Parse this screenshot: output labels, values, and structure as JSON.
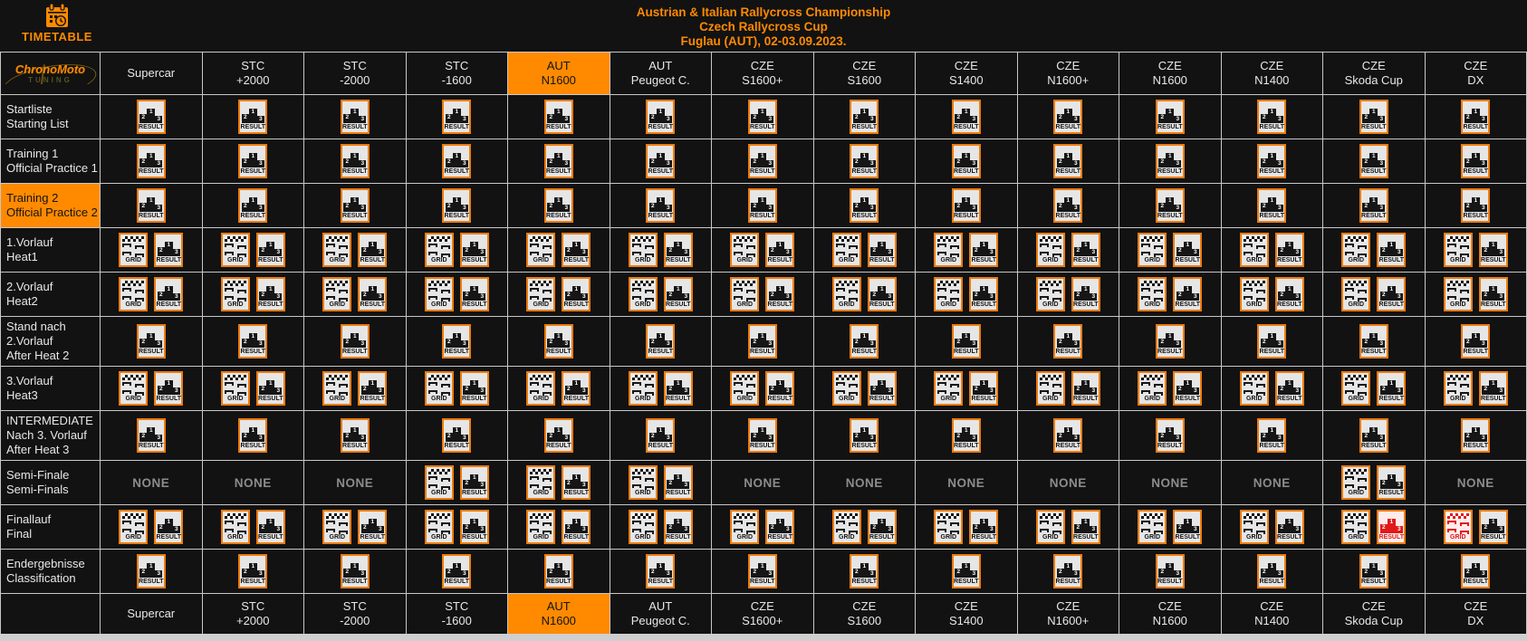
{
  "colors": {
    "accent": "#ff8a00",
    "cell_bg": "#121212",
    "grid_line": "#c8c8c8",
    "icon_bg": "#e6e6e6",
    "icon_border": "#ec7c0e",
    "red": "#e11919",
    "none_text": "#8c8c8c",
    "header_text": "#e8e8e8"
  },
  "header": {
    "timetable_label": "TIMETABLE",
    "title_lines": [
      "Austrian & Italian Rallycross Championship",
      "Czech Rallycross Cup",
      "Fuglau (AUT), 02-03.09.2023."
    ],
    "logo": {
      "brand": "ChronoMoto",
      "sub": "TUNING"
    }
  },
  "icons": {
    "grid_label": "GRID",
    "result_label": "RESULT",
    "none_label": "NONE",
    "podium": {
      "first": "1",
      "second": "2",
      "third": "3"
    }
  },
  "cell_codes_legend": {
    "R": "result icon only",
    "GR": "grid icon + result icon",
    "N": "none",
    "GRr": "grid icon + red result icon",
    "GrR": "red grid icon + result icon"
  },
  "columns": [
    {
      "lines": [
        "Supercar"
      ],
      "highlight": false
    },
    {
      "lines": [
        "STC",
        "+2000"
      ],
      "highlight": false
    },
    {
      "lines": [
        "STC",
        "-2000"
      ],
      "highlight": false
    },
    {
      "lines": [
        "STC",
        "-1600"
      ],
      "highlight": false
    },
    {
      "lines": [
        "AUT",
        "N1600"
      ],
      "highlight": true
    },
    {
      "lines": [
        "AUT",
        "Peugeot C."
      ],
      "highlight": false
    },
    {
      "lines": [
        "CZE",
        "S1600+"
      ],
      "highlight": false
    },
    {
      "lines": [
        "CZE",
        "S1600"
      ],
      "highlight": false
    },
    {
      "lines": [
        "CZE",
        "S1400"
      ],
      "highlight": false
    },
    {
      "lines": [
        "CZE",
        "N1600+"
      ],
      "highlight": false
    },
    {
      "lines": [
        "CZE",
        "N1600"
      ],
      "highlight": false
    },
    {
      "lines": [
        "CZE",
        "N1400"
      ],
      "highlight": false
    },
    {
      "lines": [
        "CZE",
        "Skoda Cup"
      ],
      "highlight": false
    },
    {
      "lines": [
        "CZE",
        "DX"
      ],
      "highlight": false
    }
  ],
  "rows": [
    {
      "lines": [
        "Startliste",
        "Starting List"
      ],
      "highlight": false,
      "cells": [
        "R",
        "R",
        "R",
        "R",
        "R",
        "R",
        "R",
        "R",
        "R",
        "R",
        "R",
        "R",
        "R",
        "R"
      ]
    },
    {
      "lines": [
        "Training 1",
        "Official Practice 1"
      ],
      "highlight": false,
      "cells": [
        "R",
        "R",
        "R",
        "R",
        "R",
        "R",
        "R",
        "R",
        "R",
        "R",
        "R",
        "R",
        "R",
        "R"
      ]
    },
    {
      "lines": [
        "Training 2",
        "Official Practice 2"
      ],
      "highlight": true,
      "cells": [
        "R",
        "R",
        "R",
        "R",
        "R",
        "R",
        "R",
        "R",
        "R",
        "R",
        "R",
        "R",
        "R",
        "R"
      ]
    },
    {
      "lines": [
        "1.Vorlauf",
        "Heat1"
      ],
      "highlight": false,
      "cells": [
        "GR",
        "GR",
        "GR",
        "GR",
        "GR",
        "GR",
        "GR",
        "GR",
        "GR",
        "GR",
        "GR",
        "GR",
        "GR",
        "GR"
      ]
    },
    {
      "lines": [
        "2.Vorlauf",
        "Heat2"
      ],
      "highlight": false,
      "cells": [
        "GR",
        "GR",
        "GR",
        "GR",
        "GR",
        "GR",
        "GR",
        "GR",
        "GR",
        "GR",
        "GR",
        "GR",
        "GR",
        "GR"
      ]
    },
    {
      "lines": [
        "Stand nach",
        "2.Vorlauf",
        "After Heat 2"
      ],
      "highlight": false,
      "cells": [
        "R",
        "R",
        "R",
        "R",
        "R",
        "R",
        "R",
        "R",
        "R",
        "R",
        "R",
        "R",
        "R",
        "R"
      ]
    },
    {
      "lines": [
        "3.Vorlauf",
        "Heat3"
      ],
      "highlight": false,
      "cells": [
        "GR",
        "GR",
        "GR",
        "GR",
        "GR",
        "GR",
        "GR",
        "GR",
        "GR",
        "GR",
        "GR",
        "GR",
        "GR",
        "GR"
      ]
    },
    {
      "lines": [
        "INTERMEDIATE",
        "Nach 3. Vorlauf",
        "After Heat 3"
      ],
      "highlight": false,
      "cells": [
        "R",
        "R",
        "R",
        "R",
        "R",
        "R",
        "R",
        "R",
        "R",
        "R",
        "R",
        "R",
        "R",
        "R"
      ]
    },
    {
      "lines": [
        "Semi-Finale",
        "Semi-Finals"
      ],
      "highlight": false,
      "cells": [
        "N",
        "N",
        "N",
        "GR",
        "GR",
        "GR",
        "N",
        "N",
        "N",
        "N",
        "N",
        "N",
        "GR",
        "N"
      ]
    },
    {
      "lines": [
        "Finallauf",
        "Final"
      ],
      "highlight": false,
      "cells": [
        "GR",
        "GR",
        "GR",
        "GR",
        "GR",
        "GR",
        "GR",
        "GR",
        "GR",
        "GR",
        "GR",
        "GR",
        "GRr",
        "GrR"
      ]
    },
    {
      "lines": [
        "Endergebnisse",
        "Classification"
      ],
      "highlight": false,
      "cells": [
        "R",
        "R",
        "R",
        "R",
        "R",
        "R",
        "R",
        "R",
        "R",
        "R",
        "R",
        "R",
        "R",
        "R"
      ]
    }
  ]
}
